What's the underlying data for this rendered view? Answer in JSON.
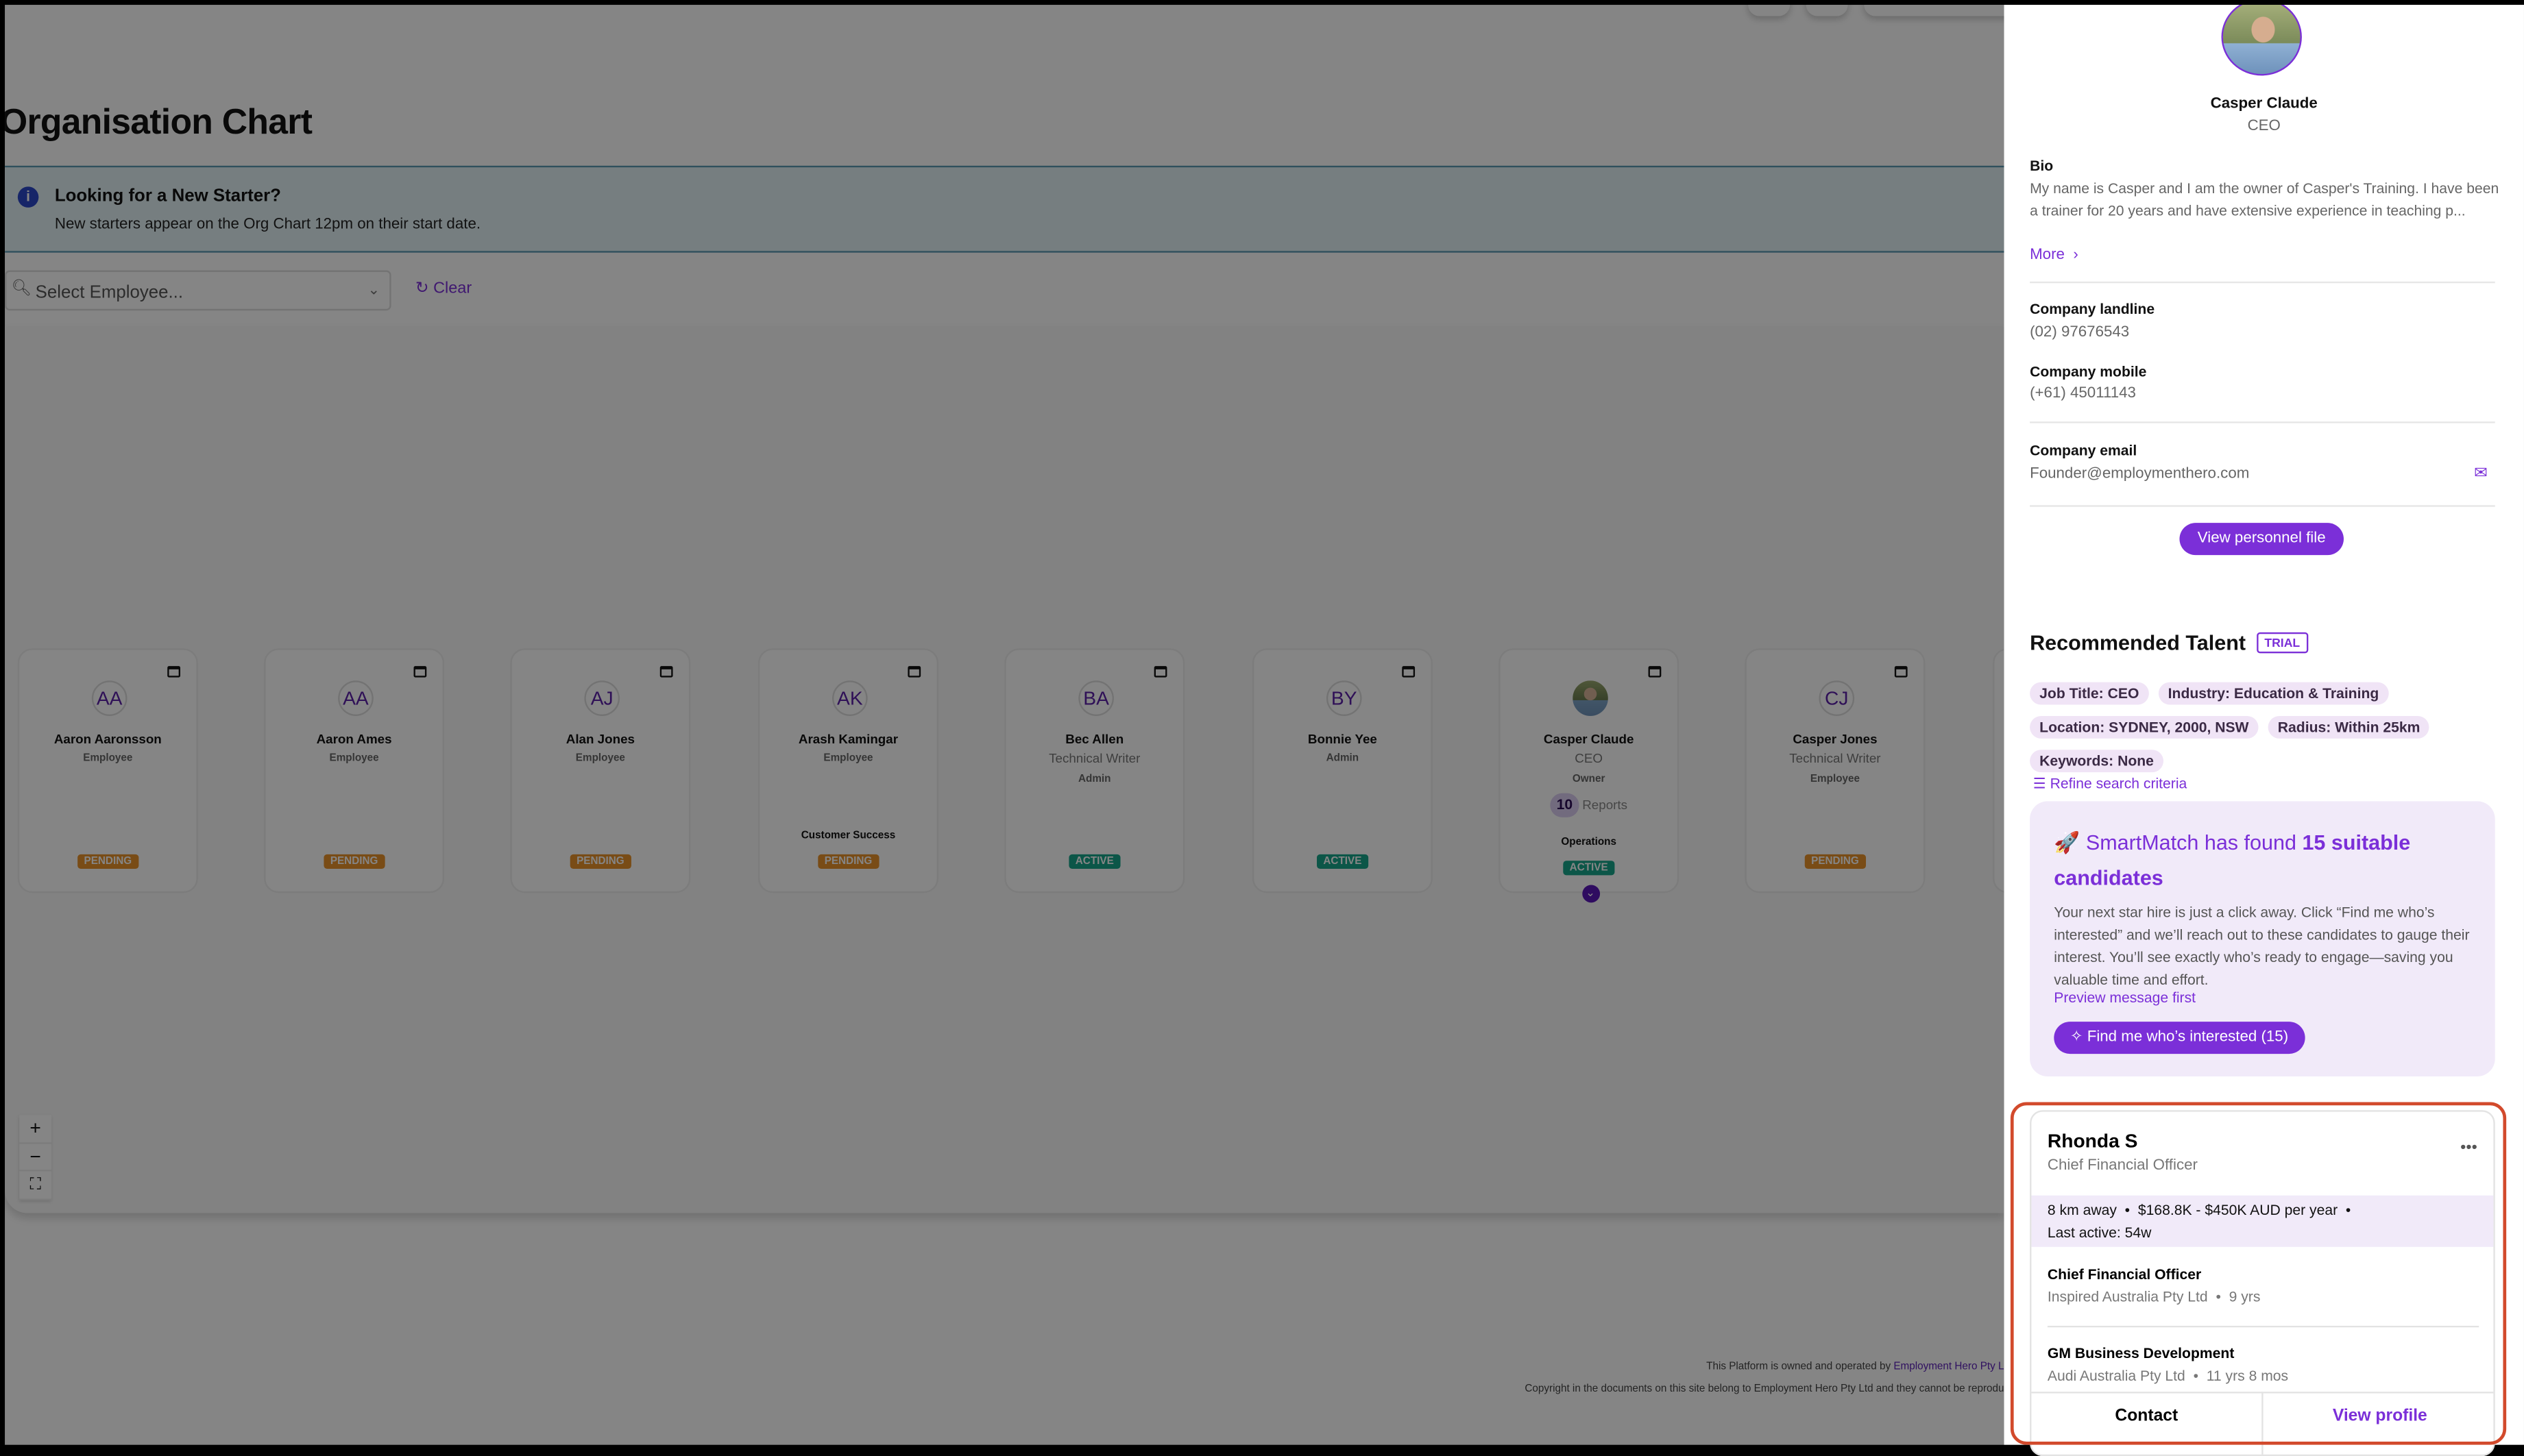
{
  "page": {
    "title": "Organisation Chart"
  },
  "banner": {
    "icon": "info-icon",
    "heading": "Looking for a New Starter?",
    "text": "New starters appear on the Org Chart 12pm on their start date."
  },
  "filter": {
    "placeholder": "Select Employee...",
    "clear_label": "Clear"
  },
  "zoom_controls": {
    "zoom_in": "+",
    "zoom_out": "−",
    "fit": "⛶"
  },
  "org_cards": [
    {
      "initials": "AA",
      "name": "Aaron Aaronsson",
      "title": "",
      "role": "Employee",
      "department": "",
      "reports": "",
      "status": "PENDING"
    },
    {
      "initials": "AA",
      "name": "Aaron Ames",
      "title": "",
      "role": "Employee",
      "department": "",
      "reports": "",
      "status": "PENDING"
    },
    {
      "initials": "AJ",
      "name": "Alan Jones",
      "title": "",
      "role": "Employee",
      "department": "",
      "reports": "",
      "status": "PENDING"
    },
    {
      "initials": "AK",
      "name": "Arash Kamingar",
      "title": "",
      "role": "Employee",
      "department": "Customer Success",
      "reports": "",
      "status": "PENDING"
    },
    {
      "initials": "BA",
      "name": "Bec Allen",
      "title": "Technical Writer",
      "role": "Admin",
      "department": "",
      "reports": "",
      "status": "ACTIVE"
    },
    {
      "initials": "BY",
      "name": "Bonnie Yee",
      "title": "",
      "role": "Admin",
      "department": "",
      "reports": "",
      "status": "ACTIVE"
    },
    {
      "initials": "",
      "photo": true,
      "name": "Casper Claude",
      "title": "CEO",
      "role": "Owner",
      "department": "Operations",
      "reports": "10",
      "reports_label": "Reports",
      "status": "ACTIVE",
      "expandable": true
    },
    {
      "initials": "CJ",
      "name": "Casper Jones",
      "title": "Technical Writer",
      "role": "Employee",
      "department": "",
      "reports": "",
      "status": "PENDING"
    }
  ],
  "status_colors": {
    "PENDING": "#e8922a",
    "ACTIVE": "#17a58a"
  },
  "footer": {
    "line1": "This Platform is owned and operated by ",
    "line1_link": "Employment Hero Pty L",
    "line2": "Copyright in the documents on this site belong to Employment Hero Pty Ltd and they cannot be reprodu"
  },
  "profile": {
    "name": "Casper Claude",
    "title": "CEO",
    "bio_label": "Bio",
    "bio": "My name is Casper and I am the owner of Casper's Training. I have been a trainer for 20 years and have extensive experience in teaching p...",
    "more_label": "More",
    "landline_label": "Company landline",
    "landline": "(02) 97676543",
    "mobile_label": "Company mobile",
    "mobile": "(+61) 45011143",
    "email_label": "Company email",
    "email": "Founder@employmenthero.com",
    "view_file_label": "View personnel file"
  },
  "talent": {
    "heading": "Recommended Talent",
    "badge": "TRIAL",
    "criteria": [
      "Job Title: CEO",
      "Industry: Education & Training",
      "Location: SYDNEY, 2000, NSW",
      "Radius: Within 25km",
      "Keywords: None"
    ],
    "refine_label": "Refine search criteria",
    "smartmatch": {
      "emoji": "🚀",
      "prefix": "SmartMatch has found ",
      "highlight": "15 suitable candidates",
      "body": "Your next star hire is just a click away. Click “Find me who’s interested” and we’ll reach out to these candidates to gauge their interest. You’ll see exactly who’s ready to engage—saving you valuable time and effort.",
      "preview_label": "Preview message first",
      "cta_label": "Find me who’s interested (15)"
    },
    "candidate": {
      "name": "Rhonda S",
      "title": "Chief Financial Officer",
      "distance": "8 km away",
      "salary": "$168.8K - $450K AUD per year",
      "last_active": "Last active: 54w",
      "experience": [
        {
          "role": "Chief Financial Officer",
          "company": "Inspired Australia Pty Ltd",
          "duration": "9 yrs"
        },
        {
          "role": "GM Business Development",
          "company": "Audi Australia Pty Ltd",
          "duration": "11 yrs 8 mos"
        }
      ],
      "contact_label": "Contact",
      "view_profile_label": "View profile"
    }
  }
}
